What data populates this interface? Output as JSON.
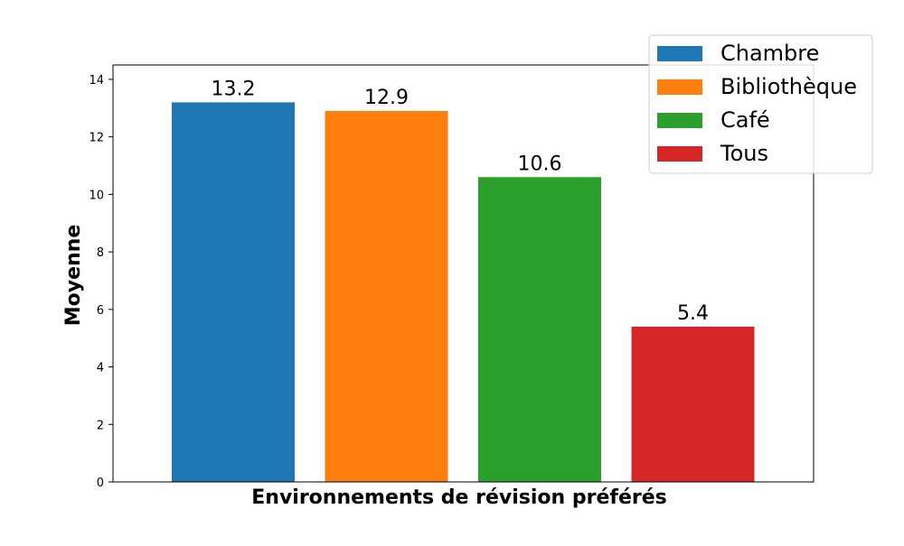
{
  "chart_data": {
    "type": "bar",
    "categories": [
      "Chambre",
      "Bibliothèque",
      "Café",
      "Tous"
    ],
    "values": [
      13.2,
      12.9,
      10.6,
      5.4
    ],
    "value_labels": [
      "13.2",
      "12.9",
      "10.6",
      "5.4"
    ],
    "colors": [
      "#1f77b4",
      "#ff7f0e",
      "#2ca02c",
      "#d62728"
    ],
    "title": "",
    "xlabel": "Environnements de révision préférés",
    "ylabel": "Moyenne",
    "ylim": [
      0,
      14.5
    ],
    "yticks": [
      0,
      2,
      4,
      6,
      8,
      10,
      12,
      14
    ],
    "grid": false,
    "legend": {
      "placement": "top-right",
      "entries": [
        "Chambre",
        "Bibliothèque",
        "Café",
        "Tous"
      ]
    }
  }
}
